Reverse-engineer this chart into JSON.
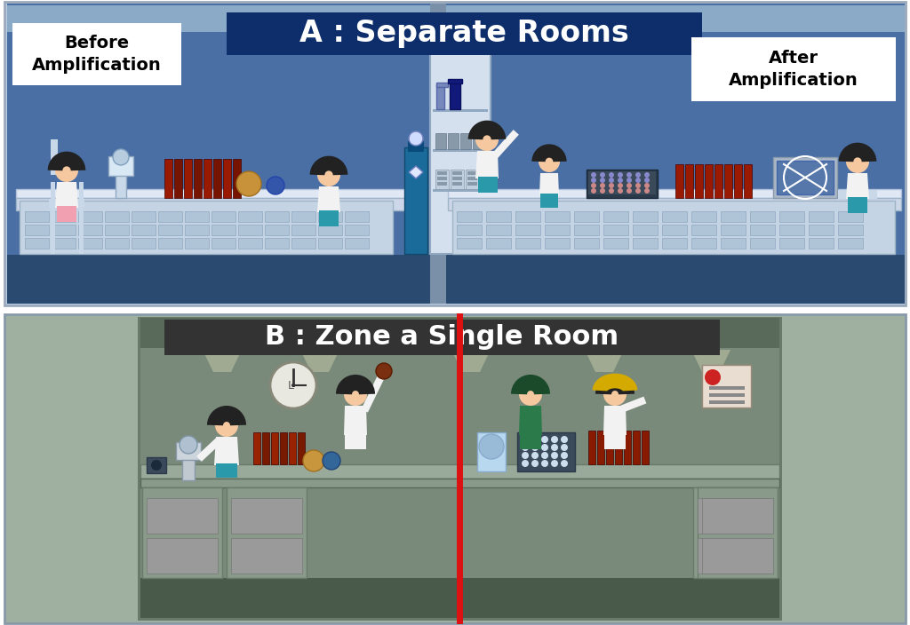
{
  "title_a": "A : Separate Rooms",
  "title_b": "B : Zone a Single Room",
  "label_before": "Before\nAmplification",
  "label_after": "After\nAmplification",
  "title_a_bg": "#0d2d6b",
  "title_b_bg": "#333333",
  "title_text_color": "#ffffff",
  "label_text_color": "#000000",
  "bg_white": "#ffffff",
  "panel_a_bg": "#4a6fa5",
  "panel_a_inner": "#3d5f90",
  "panel_b_outer": "#8fa08f",
  "panel_b_inner": "#7a907a",
  "red_line_color": "#dd1111",
  "body_white": "#f2f2f2",
  "body_teal": "#2a9aaa",
  "body_pink": "#f0a0b0",
  "body_green": "#2a7a4a",
  "hair_dark": "#222222",
  "skin": "#f5c8a0",
  "gas_cylinder_color": "#2a7aaa",
  "cabinet_bg": "#dde8f5",
  "bench_top": "#cccccc",
  "bench_face": "#aaaaaa",
  "bench_dark": "#888888",
  "drawer_bg": "#999999",
  "drawer_face": "#b0b0b0",
  "red_tube": "#aa1a00",
  "floor_a_color": "#2a4a70",
  "ceiling_a_color": "#8aaac8",
  "wall_center": "#7a8fa8",
  "bench_b_top": "#8a9a8a",
  "bench_b_face": "#6a7a6a",
  "wall_b_bg": "#6a806a",
  "ceiling_b": "#5a6a5a",
  "light_cone": "#e8e8c0",
  "clock_bg": "#e8e8e0",
  "cert_bg": "#e8ddd0"
}
